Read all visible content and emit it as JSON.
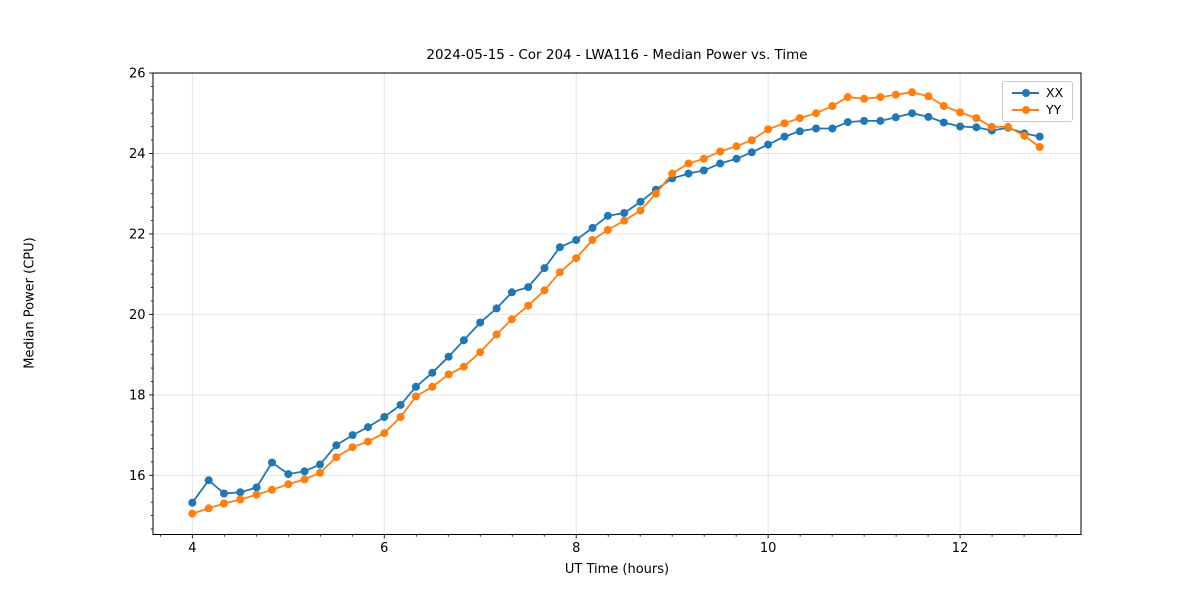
{
  "chart_data": {
    "type": "line",
    "title": "2024-05-15 - Cor 204 - LWA116 - Median Power vs. Time",
    "xlabel": "UT Time (hours)",
    "ylabel": "Median Power (CPU)",
    "xlim": [
      3.59,
      13.26
    ],
    "ylim": [
      14.53,
      26.0
    ],
    "xticks": [
      4,
      6,
      8,
      10,
      12
    ],
    "yticks": [
      16,
      18,
      20,
      22,
      24,
      26
    ],
    "grid": true,
    "grid_color": "#e4e4e4",
    "legend_position": "upper right",
    "marker": "circle",
    "x": [
      4.0,
      4.17,
      4.33,
      4.5,
      4.67,
      4.83,
      5.0,
      5.17,
      5.33,
      5.5,
      5.67,
      5.83,
      6.0,
      6.17,
      6.33,
      6.5,
      6.67,
      6.83,
      7.0,
      7.17,
      7.33,
      7.5,
      7.67,
      7.83,
      8.0,
      8.17,
      8.33,
      8.5,
      8.67,
      8.83,
      9.0,
      9.17,
      9.33,
      9.5,
      9.67,
      9.83,
      10.0,
      10.17,
      10.33,
      10.5,
      10.67,
      10.83,
      11.0,
      11.17,
      11.33,
      11.5,
      11.67,
      11.83,
      12.0,
      12.17,
      12.33,
      12.5,
      12.67,
      12.83
    ],
    "series": [
      {
        "name": "XX",
        "color": "#1f77b4",
        "values": [
          15.32,
          15.88,
          15.55,
          15.58,
          15.7,
          16.32,
          16.03,
          16.1,
          16.27,
          16.75,
          17.0,
          17.2,
          17.45,
          17.75,
          18.2,
          18.55,
          18.95,
          19.36,
          19.8,
          20.15,
          20.55,
          20.68,
          21.15,
          21.67,
          21.85,
          22.15,
          22.45,
          22.52,
          22.8,
          23.1,
          23.38,
          23.5,
          23.58,
          23.75,
          23.87,
          24.03,
          24.22,
          24.42,
          24.55,
          24.62,
          24.62,
          24.78,
          24.81,
          24.81,
          24.9,
          25.0,
          24.91,
          24.77,
          24.67,
          24.65,
          24.57,
          24.64,
          24.5,
          24.42
        ]
      },
      {
        "name": "YY",
        "color": "#ff7f0e",
        "values": [
          15.05,
          15.18,
          15.3,
          15.4,
          15.52,
          15.64,
          15.78,
          15.9,
          16.06,
          16.45,
          16.7,
          16.84,
          17.05,
          17.45,
          17.96,
          18.2,
          18.51,
          18.7,
          19.06,
          19.5,
          19.88,
          20.22,
          20.6,
          21.05,
          21.4,
          21.85,
          22.1,
          22.33,
          22.58,
          23.0,
          23.5,
          23.75,
          23.87,
          24.05,
          24.18,
          24.33,
          24.6,
          24.75,
          24.88,
          25.0,
          25.18,
          25.4,
          25.36,
          25.4,
          25.46,
          25.52,
          25.42,
          25.18,
          25.02,
          24.88,
          24.66,
          24.66,
          24.44,
          24.16
        ]
      }
    ]
  }
}
